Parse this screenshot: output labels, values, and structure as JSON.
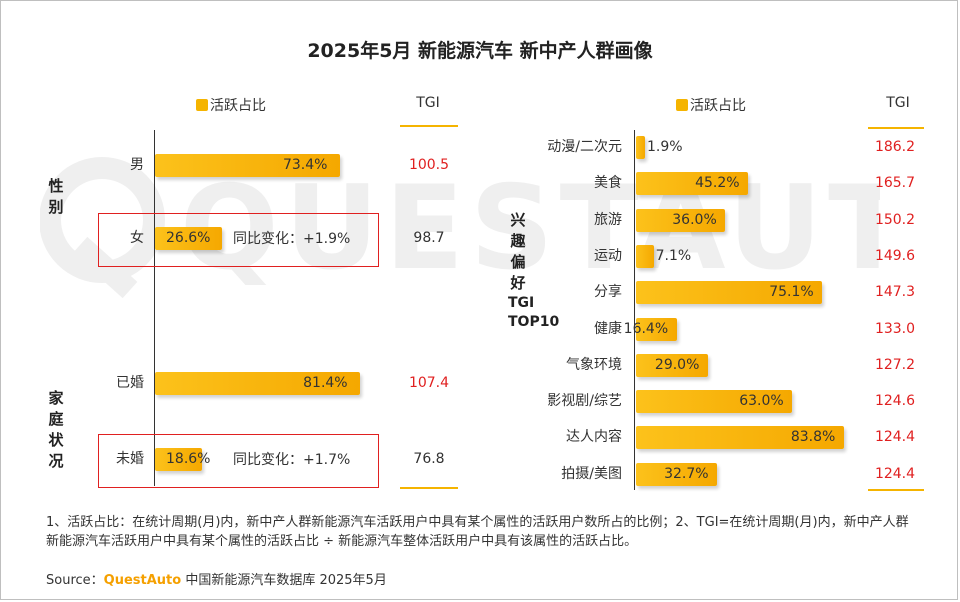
{
  "title": "2025年5月 新能源汽车 新中产人群画像",
  "watermark": "QUESTAUTO",
  "colors": {
    "bar": "#f5b400",
    "tgi_high": "#e02020",
    "tgi_low": "#333333",
    "box": "#e02020"
  },
  "left": {
    "legend": "活跃占比",
    "tgi_header": "TGI",
    "groups": [
      {
        "category": "性别",
        "rows": [
          {
            "label": "男",
            "value": 73.4,
            "value_text": "73.4%",
            "tgi": "100.5",
            "tgi_high": true,
            "yoy": ""
          },
          {
            "label": "女",
            "value": 26.6,
            "value_text": "26.6%",
            "tgi": "98.7",
            "tgi_high": false,
            "yoy": "同比变化：+1.9%"
          }
        ]
      },
      {
        "category": "家庭状况",
        "rows": [
          {
            "label": "已婚",
            "value": 81.4,
            "value_text": "81.4%",
            "tgi": "107.4",
            "tgi_high": true,
            "yoy": ""
          },
          {
            "label": "未婚",
            "value": 18.6,
            "value_text": "18.6%",
            "tgi": "76.8",
            "tgi_high": false,
            "yoy": "同比变化：+1.7%"
          }
        ]
      }
    ]
  },
  "right": {
    "legend": "活跃占比",
    "tgi_header": "TGI",
    "category": "兴趣偏好",
    "category_sub": "TGI TOP10",
    "rows": [
      {
        "label": "动漫/二次元",
        "value": 1.9,
        "value_text": "1.9%",
        "tgi": "186.2"
      },
      {
        "label": "美食",
        "value": 45.2,
        "value_text": "45.2%",
        "tgi": "165.7"
      },
      {
        "label": "旅游",
        "value": 36.0,
        "value_text": "36.0%",
        "tgi": "150.2"
      },
      {
        "label": "运动",
        "value": 7.1,
        "value_text": "7.1%",
        "tgi": "149.6"
      },
      {
        "label": "分享",
        "value": 75.1,
        "value_text": "75.1%",
        "tgi": "147.3"
      },
      {
        "label": "健康",
        "value": 16.4,
        "value_text": "16.4%",
        "tgi": "133.0"
      },
      {
        "label": "气象环境",
        "value": 29.0,
        "value_text": "29.0%",
        "tgi": "127.2"
      },
      {
        "label": "影视剧/综艺",
        "value": 63.0,
        "value_text": "63.0%",
        "tgi": "124.6"
      },
      {
        "label": "达人内容",
        "value": 83.8,
        "value_text": "83.8%",
        "tgi": "124.4"
      },
      {
        "label": "拍摄/美图",
        "value": 32.7,
        "value_text": "32.7%",
        "tgi": "124.4"
      }
    ]
  },
  "chart_data": [
    {
      "type": "bar",
      "title": "新中产人群画像 - 性别/家庭状况",
      "xlabel": "",
      "ylabel": "活跃占比",
      "categories": [
        "男",
        "女",
        "已婚",
        "未婚"
      ],
      "series": [
        {
          "name": "活跃占比(%)",
          "values": [
            73.4,
            26.6,
            81.4,
            18.6
          ]
        },
        {
          "name": "TGI",
          "values": [
            100.5,
            98.7,
            107.4,
            76.8
          ]
        }
      ]
    },
    {
      "type": "bar",
      "title": "兴趣偏好 TGI TOP10",
      "xlabel": "",
      "ylabel": "活跃占比",
      "categories": [
        "动漫/二次元",
        "美食",
        "旅游",
        "运动",
        "分享",
        "健康",
        "气象环境",
        "影视剧/综艺",
        "达人内容",
        "拍摄/美图"
      ],
      "series": [
        {
          "name": "活跃占比(%)",
          "values": [
            1.9,
            45.2,
            36.0,
            7.1,
            75.1,
            16.4,
            29.0,
            63.0,
            83.8,
            32.7
          ]
        },
        {
          "name": "TGI",
          "values": [
            186.2,
            165.7,
            150.2,
            149.6,
            147.3,
            133.0,
            127.2,
            124.6,
            124.4,
            124.4
          ]
        }
      ]
    }
  ],
  "footnote": "1、活跃占比：在统计周期(月)内，新中产人群新能源汽车活跃用户中具有某个属性的活跃用户数所占的比例；2、TGI=在统计周期(月)内，新中产人群新能源汽车活跃用户中具有某个属性的活跃占比 ÷ 新能源汽车整体活跃用户中具有该属性的活跃占比。",
  "source": {
    "prefix": "Source：",
    "brand": "QuestAuto",
    "text": " 中国新能源汽车数据库 2025年5月"
  }
}
